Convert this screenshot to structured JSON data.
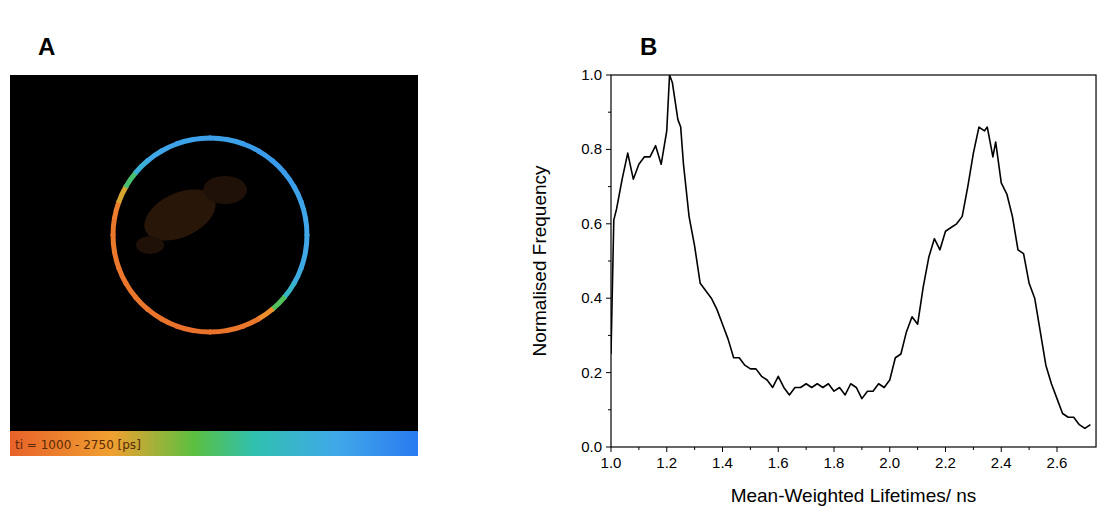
{
  "chart_data": [
    {
      "type": "image",
      "panel": "A",
      "ring_lifetimes": [
        2450,
        2450,
        2480,
        2500,
        2500,
        2480,
        2450,
        2420,
        2400,
        2400,
        2380,
        2350,
        2200,
        1850,
        1300,
        1150,
        1150,
        1120,
        1120,
        1100,
        1120,
        1130,
        1150,
        1150,
        1140,
        1150,
        1160,
        1150,
        1200,
        1500,
        1900,
        2300,
        2400,
        2420,
        2440,
        2450
      ],
      "colorbar_label": "ti = 1000 - 2750 [ps]",
      "colorbar_range": [
        1000,
        2750
      ]
    },
    {
      "type": "line",
      "panel": "B",
      "x_label": "Mean-Weighted Lifetimes/ ns",
      "y_label": "Normalised Frequency",
      "x": [
        1.0,
        1.01,
        1.02,
        1.04,
        1.06,
        1.08,
        1.1,
        1.12,
        1.14,
        1.16,
        1.18,
        1.2,
        1.21,
        1.22,
        1.24,
        1.25,
        1.26,
        1.28,
        1.3,
        1.32,
        1.34,
        1.36,
        1.38,
        1.4,
        1.42,
        1.44,
        1.46,
        1.48,
        1.5,
        1.52,
        1.54,
        1.56,
        1.58,
        1.6,
        1.62,
        1.64,
        1.66,
        1.68,
        1.7,
        1.72,
        1.74,
        1.76,
        1.78,
        1.8,
        1.82,
        1.84,
        1.86,
        1.88,
        1.9,
        1.92,
        1.94,
        1.96,
        1.98,
        2.0,
        2.02,
        2.04,
        2.06,
        2.08,
        2.1,
        2.12,
        2.14,
        2.16,
        2.18,
        2.2,
        2.22,
        2.24,
        2.26,
        2.28,
        2.3,
        2.32,
        2.34,
        2.35,
        2.37,
        2.38,
        2.4,
        2.42,
        2.44,
        2.46,
        2.48,
        2.5,
        2.52,
        2.54,
        2.56,
        2.58,
        2.6,
        2.62,
        2.64,
        2.66,
        2.68,
        2.7,
        2.72
      ],
      "values": [
        0.25,
        0.61,
        0.64,
        0.72,
        0.79,
        0.72,
        0.76,
        0.78,
        0.78,
        0.81,
        0.76,
        0.85,
        1.0,
        0.98,
        0.88,
        0.86,
        0.76,
        0.62,
        0.54,
        0.44,
        0.42,
        0.4,
        0.37,
        0.33,
        0.29,
        0.24,
        0.24,
        0.22,
        0.21,
        0.21,
        0.19,
        0.18,
        0.16,
        0.19,
        0.16,
        0.14,
        0.16,
        0.16,
        0.17,
        0.16,
        0.17,
        0.16,
        0.17,
        0.15,
        0.16,
        0.14,
        0.17,
        0.16,
        0.13,
        0.15,
        0.15,
        0.17,
        0.16,
        0.18,
        0.24,
        0.25,
        0.31,
        0.35,
        0.33,
        0.43,
        0.51,
        0.56,
        0.53,
        0.58,
        0.59,
        0.6,
        0.62,
        0.7,
        0.79,
        0.86,
        0.85,
        0.86,
        0.78,
        0.82,
        0.71,
        0.68,
        0.62,
        0.53,
        0.52,
        0.44,
        0.4,
        0.31,
        0.22,
        0.17,
        0.13,
        0.09,
        0.08,
        0.08,
        0.06,
        0.05,
        0.06
      ],
      "color": "#000000",
      "xlim": [
        1.0,
        2.74
      ],
      "ylim": [
        0,
        1.0
      ],
      "xticks": [
        {
          "value": 1.0,
          "label": "1.0"
        },
        1.2,
        1.4,
        1.6,
        1.8,
        {
          "value": 2.0,
          "label": "2.0"
        },
        2.2,
        2.4,
        2.6
      ],
      "yticks": [
        {
          "value": 0,
          "label": "0.0"
        },
        0.2,
        0.4,
        0.6,
        0.8,
        {
          "value": 1.0,
          "label": "1.0"
        }
      ],
      "grid": false
    }
  ]
}
